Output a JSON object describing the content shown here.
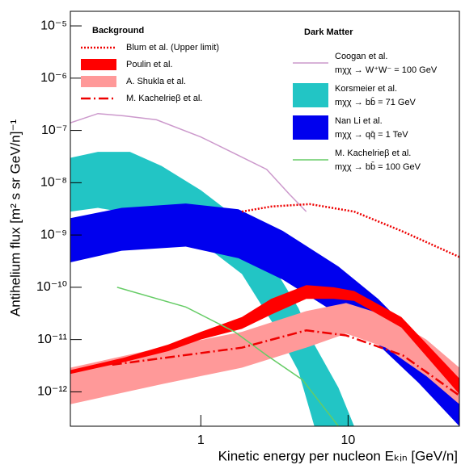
{
  "chart_data": {
    "type": "band-line",
    "xlabel": "Kinetic energy per nucleon Eₖᵢₙ [GeV/n]",
    "ylabel": "Antihelium flux [m² s sr GeV/n]⁻¹",
    "log_x": true,
    "log_y": true,
    "xlim": [
      0.13,
      57
    ],
    "ylim": [
      2.2e-13,
      1.9e-05
    ],
    "xticks": [
      {
        "value": 1,
        "label": "1"
      },
      {
        "value": 10,
        "label": "10"
      }
    ],
    "yticks": [
      {
        "value": 1e-05,
        "label": "10⁻⁵"
      },
      {
        "value": 1e-06,
        "label": "10⁻⁶"
      },
      {
        "value": 1e-07,
        "label": "10⁻⁷"
      },
      {
        "value": 1e-08,
        "label": "10⁻⁸"
      },
      {
        "value": 1e-09,
        "label": "10⁻⁹"
      },
      {
        "value": 1e-10,
        "label": "10⁻¹⁰"
      },
      {
        "value": 1e-11,
        "label": "10⁻¹¹"
      },
      {
        "value": 1e-12,
        "label": "10⁻¹²"
      }
    ],
    "groups": [
      {
        "title": "Background",
        "series": [
          {
            "name": "Blum et al. (Upper limit)",
            "kind": "line",
            "style": "dotted",
            "color": "#ee0000",
            "x": [
              1.9,
              3,
              5.5,
              11,
              23,
              57
            ],
            "values": [
              2.8e-09,
              3.5e-09,
              3.9e-09,
              2.8e-09,
              1.2e-09,
              3.8e-10
            ]
          },
          {
            "name": "Poulin et al.",
            "kind": "band",
            "color": "#ff0000",
            "x": [
              0.13,
              0.3,
              0.6,
              1,
              1.9,
              3,
              5.2,
              8,
              11,
              23,
              57
            ],
            "upper": [
              2.6e-12,
              4.5e-12,
              8e-12,
              1.4e-11,
              2.7e-11,
              6e-11,
              1.1e-10,
              1e-10,
              8.5e-11,
              2.7e-11,
              1.8e-12
            ],
            "lower": [
              2.2e-12,
              3.7e-12,
              6e-12,
              1e-11,
              1.6e-11,
              3e-11,
              6e-11,
              6e-11,
              5.5e-11,
              1.7e-11,
              9e-13
            ]
          },
          {
            "name": "A. Shukla et al.",
            "kind": "band",
            "color": "#ff9999",
            "x": [
              0.13,
              0.54,
              1.9,
              5.2,
              9.7,
              18,
              34,
              57
            ],
            "upper": [
              2.9e-12,
              7e-12,
              1.4e-11,
              3.5e-11,
              5e-11,
              2.9e-11,
              1e-11,
              2.9e-12
            ],
            "lower": [
              5.8e-13,
              1.4e-12,
              2.9e-12,
              7e-12,
              1.3e-11,
              7e-12,
              2e-12,
              5.8e-13
            ]
          },
          {
            "name": "M. Kachelrieβ et al.",
            "kind": "line",
            "style": "dashdot",
            "color": "#ee0000",
            "x": [
              0.25,
              1.9,
              5.2,
              9.7,
              23.5,
              57
            ],
            "values": [
              3.3e-12,
              7e-12,
              1.5e-11,
              1.2e-11,
              5e-12,
              8.5e-13
            ]
          }
        ]
      },
      {
        "title": "Dark Matter",
        "series": [
          {
            "name": "Coogan et al.",
            "detail": "mχχ → W⁺W⁻ = 100 GeV",
            "kind": "line",
            "style": "solid",
            "color": "#cc99cc",
            "x": [
              0.13,
              0.2,
              0.3,
              0.5,
              1,
              1.7,
              2.8,
              4,
              5.2
            ],
            "values": [
              1.4e-07,
              2.1e-07,
              1.9e-07,
              1.6e-07,
              7.5e-08,
              3.6e-08,
              1.8e-08,
              6e-09,
              2.8e-09
            ]
          },
          {
            "name": "Korsmeier et al.",
            "detail": "mχχ → bb̄ = 71 GeV",
            "kind": "band",
            "color": "#22c5c5",
            "x": [
              0.13,
              0.2,
              0.33,
              0.54,
              1,
              1.9,
              3.1,
              4.6,
              5.9,
              8.6,
              11
            ],
            "upper": [
              3e-08,
              3.9e-08,
              3.9e-08,
              2.1e-08,
              7.2e-09,
              1.8e-09,
              2.5e-10,
              4e-11,
              8e-12,
              1.2e-12,
              2.2e-13
            ],
            "lower": [
              2.8e-09,
              3.3e-09,
              2.6e-09,
              1.7e-09,
              7.2e-10,
              1.8e-10,
              2e-11,
              2.5e-12,
              2.2e-13,
              2.2e-13,
              2.2e-13
            ]
          },
          {
            "name": "Nan Li et al.",
            "detail": "mχχ → qq̄ = 1 TeV",
            "kind": "band",
            "color": "#0000ee",
            "x": [
              0.13,
              0.29,
              0.79,
              1.8,
              3.6,
              8.6,
              16,
              30,
              57
            ],
            "upper": [
              2.1e-09,
              3.3e-09,
              4e-09,
              3.1e-09,
              1.2e-09,
              2.5e-10,
              6e-11,
              1e-11,
              1.2e-12
            ],
            "lower": [
              3e-10,
              5e-10,
              6e-10,
              3.6e-10,
              1.4e-10,
              3e-11,
              8e-12,
              1.5e-12,
              2.2e-13
            ]
          },
          {
            "name": "M. Kachelrieβ et al.",
            "detail": "mχχ → bb̄ = 100 GeV",
            "kind": "line",
            "style": "solid",
            "color": "#66cc66",
            "x": [
              0.27,
              0.79,
              1.7,
              2.8,
              4.9,
              8.6
            ],
            "values": [
              1e-10,
              4.2e-11,
              1.4e-11,
              5e-12,
              1.7e-12,
              2.2e-13
            ]
          }
        ]
      }
    ]
  }
}
